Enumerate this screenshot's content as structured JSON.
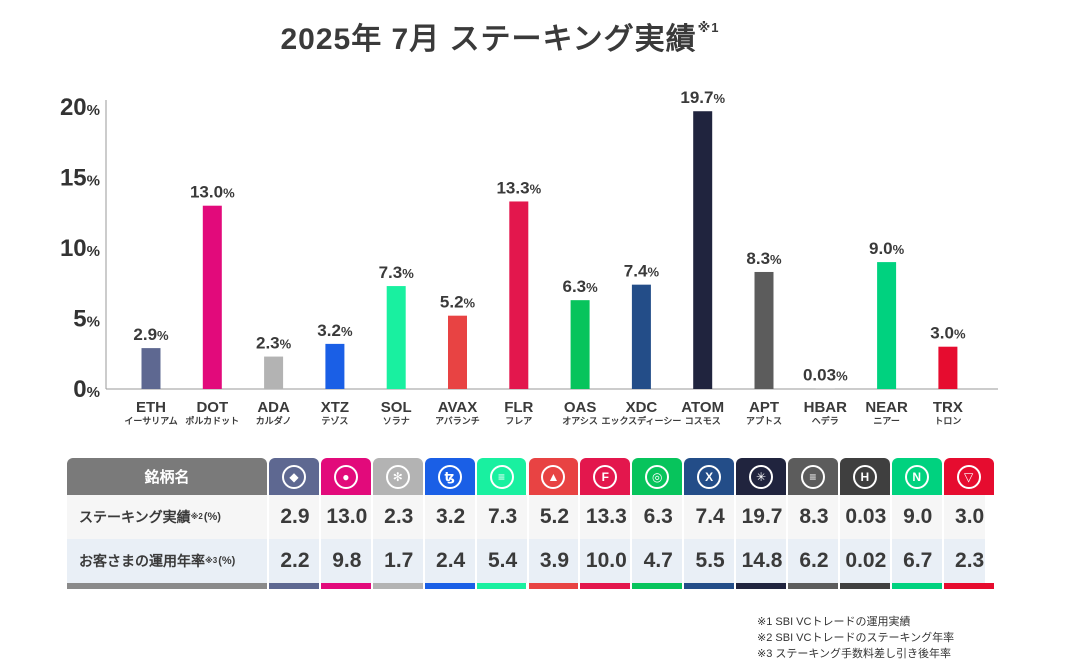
{
  "title": {
    "text": "2025年 7月  ステーキング実績",
    "sup": "※1"
  },
  "chart_data": {
    "type": "bar",
    "categories": [
      "ETH",
      "DOT",
      "ADA",
      "XTZ",
      "SOL",
      "AVAX",
      "FLR",
      "OAS",
      "XDC",
      "ATOM",
      "APT",
      "HBAR",
      "NEAR",
      "TRX"
    ],
    "subcategories": [
      "イーサリアム",
      "ポルカドット",
      "カルダノ",
      "テゾス",
      "ソラナ",
      "アバランチ",
      "フレア",
      "オアシス",
      "エックスディーシー",
      "コスモス",
      "アプトス",
      "ヘデラ",
      "ニアー",
      "トロン"
    ],
    "values": [
      2.9,
      13.0,
      2.3,
      3.2,
      7.3,
      5.2,
      13.3,
      6.3,
      7.4,
      19.7,
      8.3,
      0.03,
      9.0,
      3.0
    ],
    "value_labels": [
      "2.9",
      "13.0",
      "2.3",
      "3.2",
      "7.3",
      "5.2",
      "13.3",
      "6.3",
      "7.4",
      "19.7",
      "8.3",
      "0.03",
      "9.0",
      "3.0"
    ],
    "value_suffix": "%",
    "colors": [
      "#5e6891",
      "#e20a7b",
      "#b3b3b3",
      "#1a5fe6",
      "#19f0a0",
      "#e84343",
      "#e3174d",
      "#07c45c",
      "#234d88",
      "#20243e",
      "#5c5c5c",
      "#aaaaaa",
      "#00d27f",
      "#e60c2f"
    ],
    "yticks": [
      "0",
      "5",
      "10",
      "15",
      "20"
    ],
    "ytick_suffix": "%",
    "ylim": [
      0,
      20
    ],
    "xlabel": "",
    "ylabel": ""
  },
  "table": {
    "header_label": "銘柄名",
    "icons": [
      {
        "name": "eth-icon",
        "glyph": "◆",
        "color": "#5e6891"
      },
      {
        "name": "dot-icon",
        "glyph": "●",
        "color": "#e20a7b"
      },
      {
        "name": "ada-icon",
        "glyph": "✻",
        "color": "#b3b3b3"
      },
      {
        "name": "xtz-icon",
        "glyph": "ꜩ",
        "color": "#1a5fe6"
      },
      {
        "name": "sol-icon",
        "glyph": "≡",
        "color": "#19f0a0"
      },
      {
        "name": "avax-icon",
        "glyph": "▲",
        "color": "#e84343"
      },
      {
        "name": "flr-icon",
        "glyph": "F",
        "color": "#e3174d"
      },
      {
        "name": "oas-icon",
        "glyph": "◎",
        "color": "#07c45c"
      },
      {
        "name": "xdc-icon",
        "glyph": "X",
        "color": "#234d88"
      },
      {
        "name": "atom-icon",
        "glyph": "✳",
        "color": "#20243e"
      },
      {
        "name": "apt-icon",
        "glyph": "≡",
        "color": "#5c5c5c"
      },
      {
        "name": "hbar-icon",
        "glyph": "H",
        "color": "#3f3f3f"
      },
      {
        "name": "near-icon",
        "glyph": "N",
        "color": "#00d27f"
      },
      {
        "name": "trx-icon",
        "glyph": "▽",
        "color": "#e60c2f"
      }
    ],
    "rows": [
      {
        "label": "ステーキング実績",
        "sup": "※2",
        "unit": "(%)",
        "values": [
          "2.9",
          "13.0",
          "2.3",
          "3.2",
          "7.3",
          "5.2",
          "13.3",
          "6.3",
          "7.4",
          "19.7",
          "8.3",
          "0.03",
          "9.0",
          "3.0"
        ]
      },
      {
        "label": "お客さまの運用年率",
        "sup": "※3",
        "unit": "(%)",
        "values": [
          "2.2",
          "9.8",
          "1.7",
          "2.4",
          "5.4",
          "3.9",
          "10.0",
          "4.7",
          "5.5",
          "14.8",
          "6.2",
          "0.02",
          "6.7",
          "2.3"
        ]
      }
    ]
  },
  "notes": [
    "※1  SBI VCトレードの運用実績",
    "※2  SBI VCトレードのステーキング年率",
    "※3  ステーキング手数料差し引き後年率"
  ]
}
